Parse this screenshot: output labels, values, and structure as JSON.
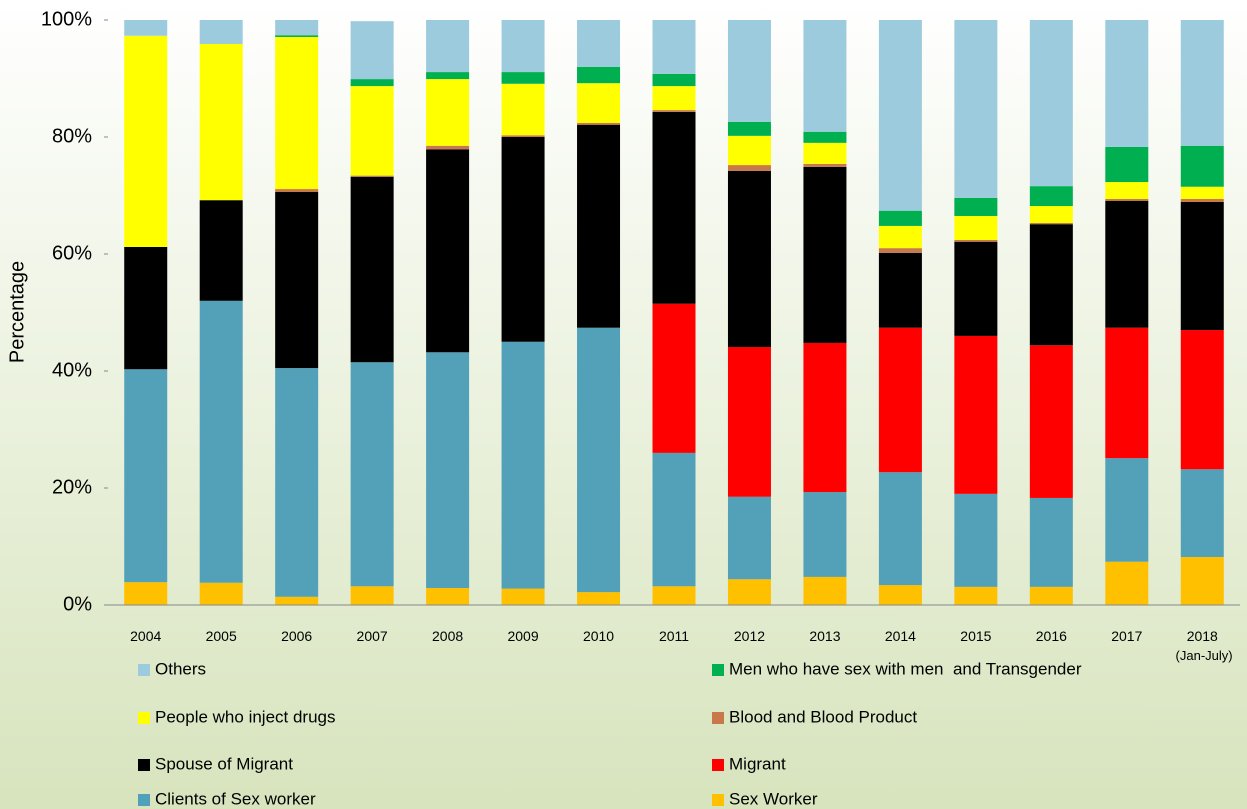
{
  "chart_data": {
    "type": "stacked_bar",
    "y_label": "Percentage",
    "categories": [
      "2004",
      "2005",
      "2006",
      "2007",
      "2008",
      "2009",
      "2010",
      "2011",
      "2012",
      "2013",
      "2014",
      "2015",
      "2016",
      "2017",
      "2018 (Jan-July)"
    ],
    "ylim": [
      0,
      100
    ],
    "yticks": [
      {
        "value": 0,
        "label": "0%"
      },
      {
        "value": 20,
        "label": "20%"
      },
      {
        "value": 40,
        "label": "40%"
      },
      {
        "value": 60,
        "label": "60%"
      },
      {
        "value": 80,
        "label": "80%"
      },
      {
        "value": 100,
        "label": "100%"
      }
    ],
    "series": [
      {
        "name": "Sex Worker",
        "color": "#ffc000",
        "values": [
          3.9,
          3.8,
          1.4,
          3.2,
          2.9,
          2.8,
          2.2,
          3.2,
          4.4,
          4.8,
          3.4,
          3.1,
          3.1,
          7.4,
          8.2
        ]
      },
      {
        "name": "Clients of Sex worker",
        "color": "#52a1b9",
        "values": [
          36.4,
          48.2,
          39.1,
          38.3,
          40.3,
          42.2,
          45.2,
          22.8,
          14.1,
          14.5,
          19.3,
          15.9,
          15.2,
          17.7,
          15.0
        ]
      },
      {
        "name": "Migrant",
        "color": "#ff0000",
        "values": [
          0,
          0,
          0,
          0,
          0,
          0,
          0,
          25.5,
          25.6,
          25.5,
          24.7,
          27.0,
          26.1,
          22.3,
          23.8
        ]
      },
      {
        "name": "Spouse of Migrant",
        "color": "#000000",
        "values": [
          20.9,
          17.2,
          30.1,
          31.7,
          34.7,
          35.0,
          34.7,
          32.8,
          30.1,
          30.1,
          12.8,
          16.1,
          20.7,
          21.7,
          21.9
        ]
      },
      {
        "name": "Blood and Blood Product",
        "color": "#c8784a",
        "values": [
          0,
          0,
          0.5,
          0.2,
          0.6,
          0.3,
          0.3,
          0.3,
          1.0,
          0.5,
          0.8,
          0.3,
          0.2,
          0.3,
          0.5
        ]
      },
      {
        "name": "People who inject drugs",
        "color": "#ffff00",
        "values": [
          36.1,
          26.7,
          26.0,
          15.3,
          11.4,
          8.8,
          6.8,
          4.1,
          5.0,
          3.6,
          3.8,
          4.1,
          2.9,
          2.9,
          2.1
        ]
      },
      {
        "name": "Men who have sex with men  and Transgender",
        "color": "#00b050",
        "values": [
          0,
          0,
          0.3,
          1.2,
          1.2,
          2.0,
          2.8,
          2.1,
          2.4,
          1.9,
          2.6,
          3.1,
          3.4,
          6.0,
          7.0
        ]
      },
      {
        "name": "Others",
        "color": "#9ccbdd",
        "values": [
          2.7,
          4.1,
          2.6,
          9.9,
          8.9,
          8.9,
          8.0,
          9.2,
          17.4,
          19.1,
          32.6,
          30.4,
          28.4,
          21.7,
          21.5
        ]
      }
    ]
  }
}
